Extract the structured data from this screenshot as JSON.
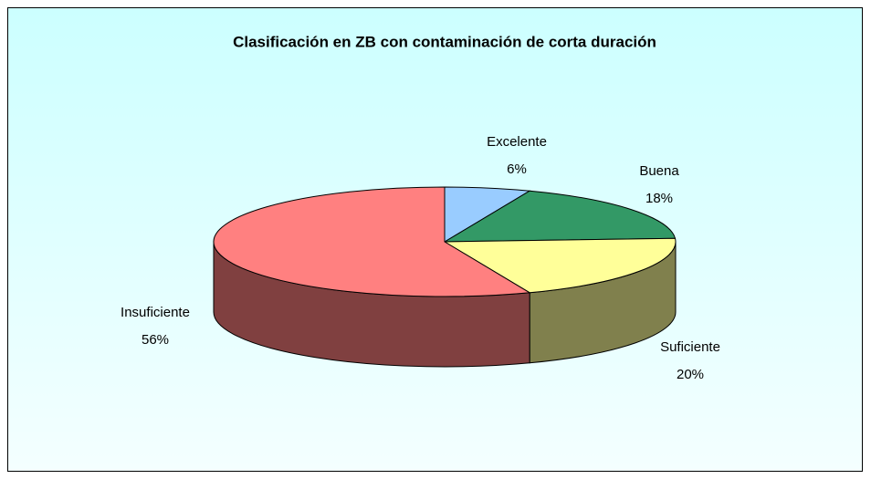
{
  "chart_data": {
    "type": "pie3d",
    "title": "Clasificación en ZB con contaminación de corta duración",
    "categories": [
      "Excelente",
      "Buena",
      "Suficiente",
      "Insuficiente"
    ],
    "values": [
      6,
      18,
      20,
      56
    ],
    "value_labels": [
      "6%",
      "18%",
      "20%",
      "56%"
    ],
    "colors": [
      "#99ccff",
      "#339966",
      "#ffff99",
      "#ff8080"
    ]
  }
}
